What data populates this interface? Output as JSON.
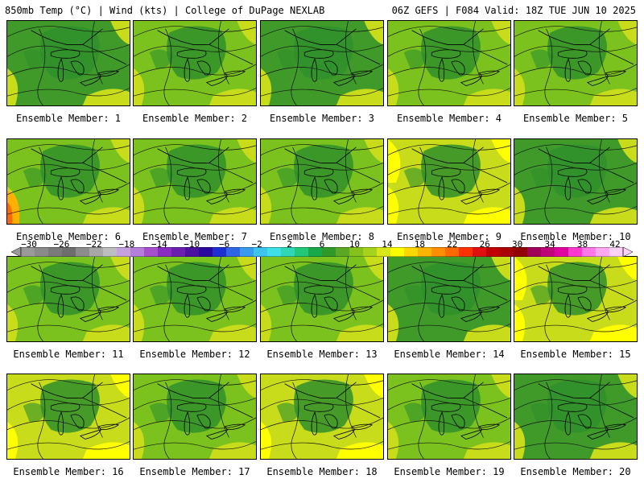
{
  "header": {
    "left": "850mb Temp (°C) | Wind (kts) | College of DuPage NEXLAB",
    "right": "06Z GEFS | F084 Valid: 18Z TUE JUN 10 2025"
  },
  "panels": [
    {
      "label": "Ensemble Member: 1",
      "tone": "dark"
    },
    {
      "label": "Ensemble Member: 2",
      "tone": "mid"
    },
    {
      "label": "Ensemble Member: 3",
      "tone": "dark"
    },
    {
      "label": "Ensemble Member: 4",
      "tone": "mid"
    },
    {
      "label": "Ensemble Member: 5",
      "tone": "mid"
    },
    {
      "label": "Ensemble Member: 6",
      "tone": "warm"
    },
    {
      "label": "Ensemble Member: 7",
      "tone": "mid"
    },
    {
      "label": "Ensemble Member: 8",
      "tone": "mid"
    },
    {
      "label": "Ensemble Member: 9",
      "tone": "light"
    },
    {
      "label": "Ensemble Member: 10",
      "tone": "dark"
    },
    {
      "label": "Ensemble Member: 11",
      "tone": "mid"
    },
    {
      "label": "Ensemble Member: 12",
      "tone": "mid"
    },
    {
      "label": "Ensemble Member: 13",
      "tone": "mid"
    },
    {
      "label": "Ensemble Member: 14",
      "tone": "dark"
    },
    {
      "label": "Ensemble Member: 15",
      "tone": "light"
    },
    {
      "label": "Ensemble Member: 16",
      "tone": "light"
    },
    {
      "label": "Ensemble Member: 17",
      "tone": "mid"
    },
    {
      "label": "Ensemble Member: 18",
      "tone": "light"
    },
    {
      "label": "Ensemble Member: 19",
      "tone": "mid"
    },
    {
      "label": "Ensemble Member: 20",
      "tone": "dark"
    }
  ],
  "colorbar": {
    "ticks": [
      "−30",
      "−26",
      "−22",
      "−18",
      "−14",
      "−10",
      "−6",
      "−2",
      "2",
      "6",
      "10",
      "14",
      "18",
      "22",
      "26",
      "30",
      "34",
      "38",
      "42"
    ],
    "colors": [
      "#9a9a9a",
      "#8a8a8a",
      "#7a7a7a",
      "#6e6e6e",
      "#8c8c8c",
      "#a7a7a7",
      "#bdbdbd",
      "#c7a0e0",
      "#b57fd9",
      "#a54fcc",
      "#8a2bc2",
      "#6a1fb0",
      "#4b10a0",
      "#2a0a9e",
      "#1f2fd0",
      "#2f66e6",
      "#3a9af0",
      "#3cc6ee",
      "#3ee0e6",
      "#2fd7b6",
      "#22c77a",
      "#1aa84a",
      "#2f9a2a",
      "#5aa824",
      "#84c11d",
      "#a7d21c",
      "#d9e61a",
      "#ffff00",
      "#ffd800",
      "#ffb400",
      "#ff8f00",
      "#ff6a00",
      "#ff3000",
      "#e01010",
      "#c00000",
      "#a80000",
      "#900000",
      "#a0005a",
      "#c0007a",
      "#e000a0",
      "#ff38d0",
      "#ff78e8",
      "#ffa8f0",
      "#ffd0f8"
    ]
  },
  "colors": {
    "dark": "#3f9a2a",
    "mid": "#7cc21e",
    "light": "#c8dc1c",
    "yellow": "#ffff00",
    "orange": "#ffb000"
  }
}
